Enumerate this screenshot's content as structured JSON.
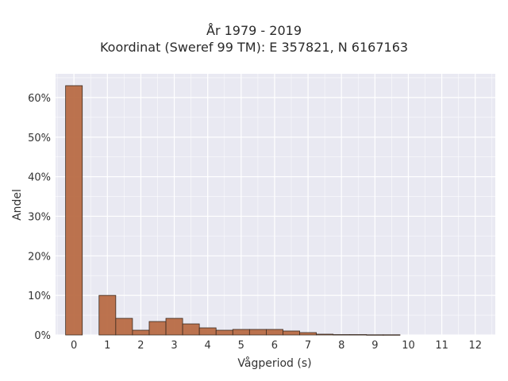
{
  "title": "År 1979 - 2019",
  "subtitle": "Koordinat (Sweref 99 TM): E 357821, N 6167163",
  "colors": {
    "bar_fill": "#b86b45",
    "bar_edge": "#3a2a20",
    "plot_background": "#e9e9f2",
    "grid": "#ffffff"
  },
  "chart_data": {
    "type": "bar",
    "title": "År 1979 - 2019",
    "subtitle": "Koordinat (Sweref 99 TM): E 357821, N 6167163",
    "xlabel": "Vågperiod (s)",
    "ylabel": "Andel",
    "bin_width": 0.5,
    "x": [
      0,
      1,
      1.5,
      2,
      2.5,
      3,
      3.5,
      4,
      4.5,
      5,
      5.5,
      6,
      6.5,
      7,
      7.5,
      8,
      8.5,
      9,
      9.5
    ],
    "values": [
      0.63,
      0.1,
      0.042,
      0.012,
      0.034,
      0.042,
      0.028,
      0.018,
      0.012,
      0.014,
      0.014,
      0.014,
      0.01,
      0.006,
      0.002,
      0.001,
      0.001,
      0.0005,
      0.0005
    ],
    "xlim": [
      -0.55,
      12.6
    ],
    "ylim": [
      0,
      0.66
    ],
    "xticks": [
      0,
      1,
      2,
      3,
      4,
      5,
      6,
      7,
      8,
      9,
      10,
      11,
      12
    ],
    "yticks": [
      0,
      0.1,
      0.2,
      0.3,
      0.4,
      0.5,
      0.6
    ],
    "ytick_labels": [
      "0%",
      "10%",
      "20%",
      "30%",
      "40%",
      "50%",
      "60%"
    ],
    "grid": true,
    "legend": "none"
  }
}
